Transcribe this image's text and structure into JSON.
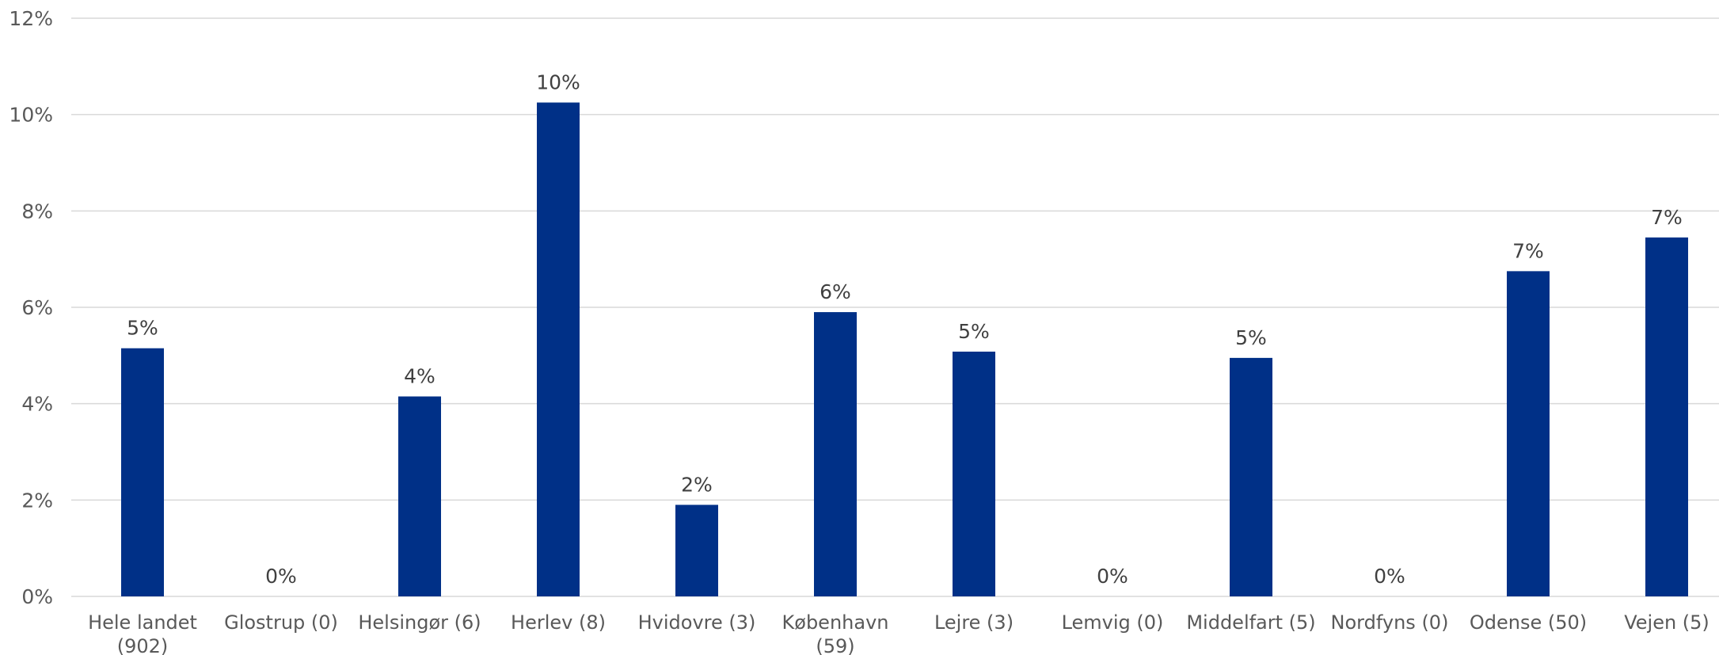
{
  "chart_data": {
    "type": "bar",
    "categories": [
      [
        "Hele landet",
        "(902)"
      ],
      [
        "Glostrup (0)"
      ],
      [
        "Helsingør (6)"
      ],
      [
        "Herlev (8)"
      ],
      [
        "Hvidovre (3)"
      ],
      [
        "København",
        "(59)"
      ],
      [
        "Lejre (3)"
      ],
      [
        "Lemvig (0)"
      ],
      [
        "Middelfart (5)"
      ],
      [
        "Nordfyns (0)"
      ],
      [
        "Odense (50)"
      ],
      [
        "Vejen (5)"
      ]
    ],
    "values": [
      5.15,
      0,
      4.15,
      10.25,
      1.9,
      5.9,
      5.08,
      0,
      4.95,
      0,
      6.75,
      7.45
    ],
    "data_labels": [
      "5%",
      "0%",
      "4%",
      "10%",
      "2%",
      "6%",
      "5%",
      "0%",
      "5%",
      "0%",
      "7%",
      "7%"
    ],
    "y_ticks": [
      "0%",
      "2%",
      "4%",
      "6%",
      "8%",
      "10%",
      "12%"
    ],
    "ylim": [
      0,
      12
    ],
    "grid": true,
    "legend": "none",
    "colors": {
      "bar": "#003087",
      "grid": "#d9d9d9",
      "text": "#595959",
      "label": "#404040"
    }
  }
}
